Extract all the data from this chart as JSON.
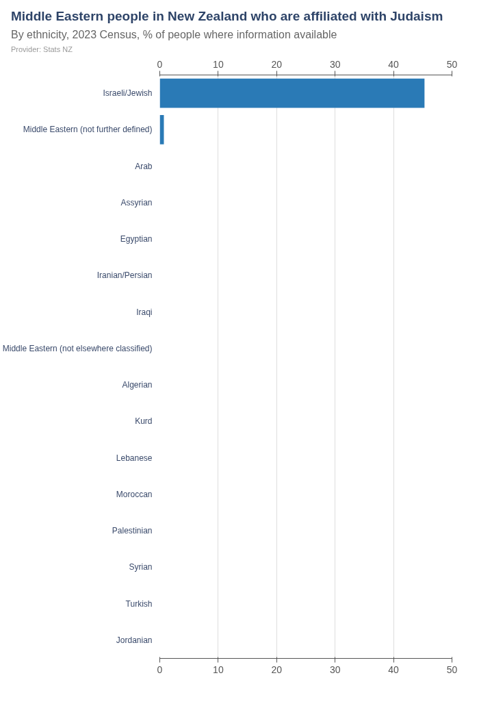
{
  "chart_data": {
    "type": "bar",
    "orientation": "horizontal",
    "title": "Middle Eastern people in New Zealand who are affiliated with Judaism",
    "subtitle": "By ethnicity, 2023 Census, % of people where information available",
    "annotations": [
      "Provider: Stats NZ"
    ],
    "categories": [
      "Israeli/Jewish",
      "Middle Eastern (not further defined)",
      "Arab",
      "Assyrian",
      "Egyptian",
      "Iranian/Persian",
      "Iraqi",
      "Middle Eastern (not elsewhere classified)",
      "Algerian",
      "Kurd",
      "Lebanese",
      "Moroccan",
      "Palestinian",
      "Syrian",
      "Turkish",
      "Jordanian"
    ],
    "values": [
      45.3,
      0.7,
      0,
      0,
      0,
      0,
      0,
      0,
      0,
      0,
      0,
      0,
      0,
      0,
      0,
      0
    ],
    "color": "#2a7ab6",
    "xlim": [
      0,
      50
    ],
    "xticks": [
      0,
      10,
      20,
      30,
      40,
      50
    ],
    "x2lim": [
      0,
      50
    ],
    "x2ticks": [
      0,
      10,
      20,
      30,
      40,
      50
    ],
    "grid": "x"
  }
}
